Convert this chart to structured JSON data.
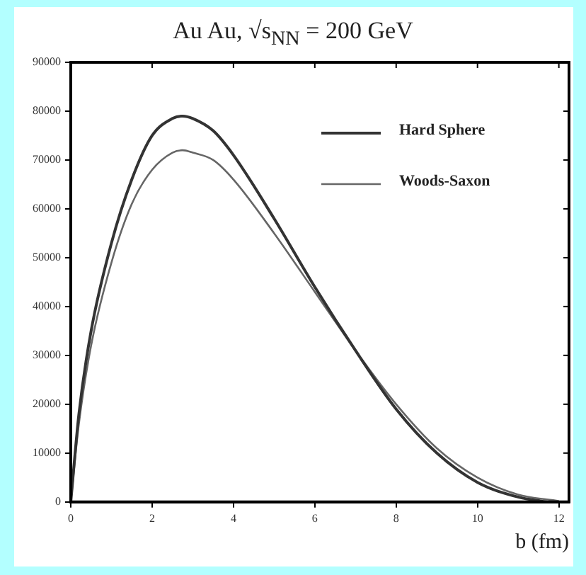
{
  "chart_data": {
    "type": "line",
    "title": "Au Au, √s$_{NN}$ = 200 GeV",
    "xlabel": "b (fm)",
    "xlim": [
      0,
      12.25
    ],
    "xticks": [
      0,
      2,
      4,
      6,
      8,
      10,
      12
    ],
    "ylim": [
      0,
      90000
    ],
    "yticks": [
      0,
      10000,
      20000,
      30000,
      40000,
      50000,
      60000,
      70000,
      80000,
      90000
    ],
    "grid": false,
    "legend": "top right",
    "marker": "none",
    "series": [
      {
        "name": "Hard Sphere",
        "color": "#333333",
        "x": [
          0,
          0.2,
          0.5,
          1.0,
          1.5,
          2.0,
          2.5,
          2.75,
          3.0,
          3.5,
          4.0,
          5.0,
          6.0,
          7.0,
          8.0,
          9.0,
          10.0,
          11.0,
          11.7
        ],
        "values": [
          0,
          18000,
          35000,
          53000,
          66000,
          75000,
          78500,
          79000,
          78500,
          76000,
          71000,
          58000,
          44000,
          31000,
          19000,
          10000,
          4000,
          1000,
          0
        ]
      },
      {
        "name": "Woods-Saxon",
        "color": "#666666",
        "x": [
          0,
          0.2,
          0.5,
          1.0,
          1.5,
          2.0,
          2.5,
          2.75,
          3.0,
          3.5,
          4.0,
          5.0,
          6.0,
          7.0,
          8.0,
          9.0,
          10.0,
          11.0,
          12.0
        ],
        "values": [
          0,
          16000,
          32000,
          49000,
          61000,
          68000,
          71500,
          72000,
          71500,
          70000,
          66000,
          55000,
          43000,
          31000,
          20000,
          11000,
          5000,
          1500,
          200
        ]
      }
    ]
  }
}
